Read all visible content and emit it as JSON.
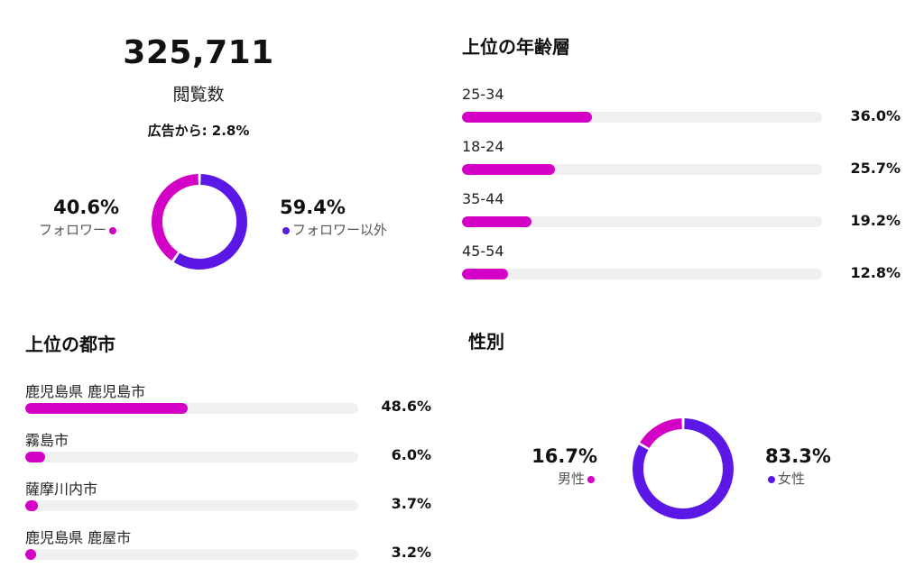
{
  "colors": {
    "follower": "#d300c5",
    "non_follower": "#5b17e6",
    "track": "#f0f0f3"
  },
  "views": {
    "count": "325,711",
    "label": "閲覧数",
    "ads_line": "広告から: 2.8%",
    "followers_pct": "40.6%",
    "followers_label": "フォロワー",
    "non_followers_pct": "59.4%",
    "non_followers_label": "フォロワー以外"
  },
  "age": {
    "title": "上位の年齢層",
    "items": [
      {
        "label": "25-34",
        "pct_text": "36.0%"
      },
      {
        "label": "18-24",
        "pct_text": "25.7%"
      },
      {
        "label": "35-44",
        "pct_text": "19.2%"
      },
      {
        "label": "45-54",
        "pct_text": "12.8%"
      }
    ]
  },
  "cities": {
    "title": "上位の都市",
    "items": [
      {
        "label": "鹿児島県 鹿児島市",
        "pct_text": "48.6%"
      },
      {
        "label": "霧島市",
        "pct_text": "6.0%"
      },
      {
        "label": "薩摩川内市",
        "pct_text": "3.7%"
      },
      {
        "label": "鹿児島県 鹿屋市",
        "pct_text": "3.2%"
      }
    ]
  },
  "gender": {
    "title": "性別",
    "male_pct": "16.7%",
    "male_label": "男性",
    "female_pct": "83.3%",
    "female_label": "女性"
  },
  "chart_data": [
    {
      "type": "pie",
      "categories": [
        "フォロワー",
        "フォロワー以外"
      ],
      "values": [
        40.6,
        59.4
      ]
    },
    {
      "type": "bar",
      "title": "上位の年齢層",
      "categories": [
        "25-34",
        "18-24",
        "35-44",
        "45-54"
      ],
      "values": [
        36.0,
        25.7,
        19.2,
        12.8
      ],
      "xlim": [
        0,
        100
      ]
    },
    {
      "type": "bar",
      "title": "上位の都市",
      "categories": [
        "鹿児島県 鹿児島市",
        "霧島市",
        "薩摩川内市",
        "鹿児島県 鹿屋市"
      ],
      "values": [
        48.6,
        6.0,
        3.7,
        3.2
      ],
      "xlim": [
        0,
        100
      ]
    },
    {
      "type": "pie",
      "title": "性別",
      "categories": [
        "男性",
        "女性"
      ],
      "values": [
        16.7,
        83.3
      ]
    }
  ]
}
